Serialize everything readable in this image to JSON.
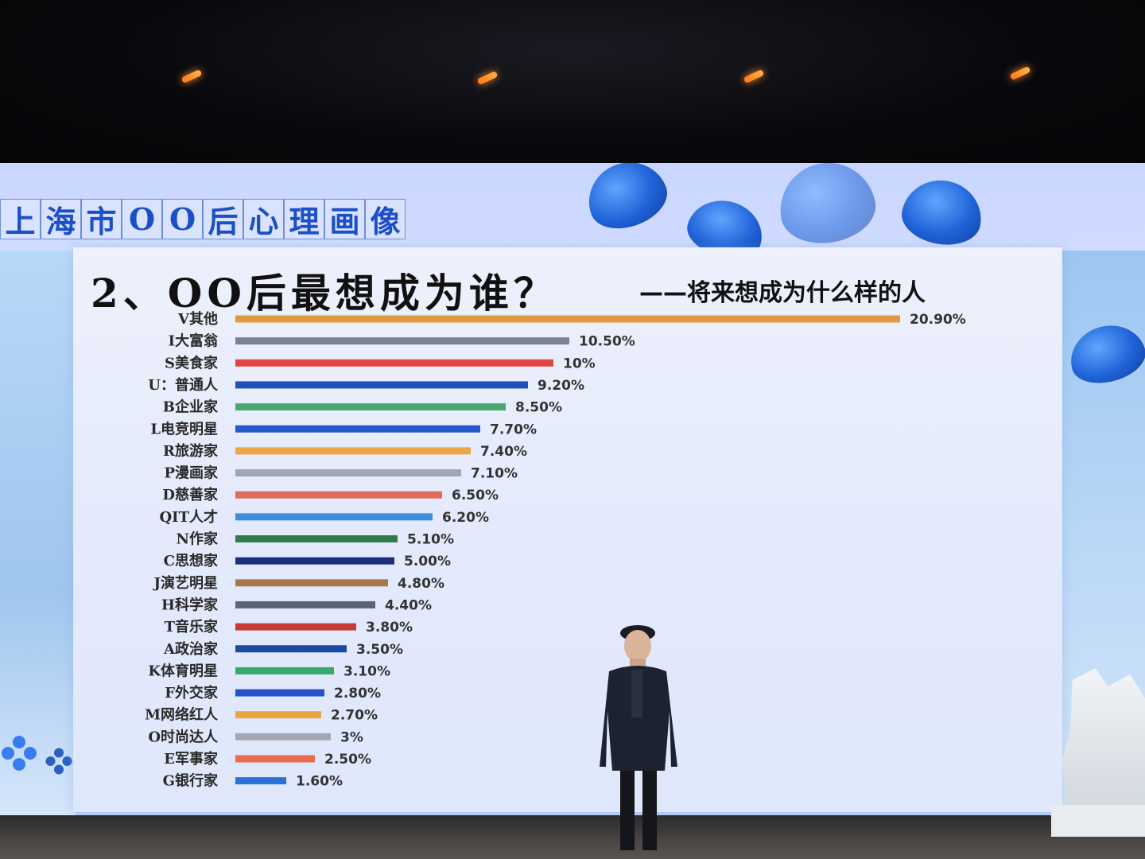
{
  "banner": {
    "chars": [
      "上",
      "海",
      "市",
      "O",
      "O",
      "后",
      "心",
      "理",
      "画",
      "像"
    ]
  },
  "slide": {
    "title": "2、OO后最想成为谁？",
    "subtitle": "——将来想成为什么样的人"
  },
  "chart_data": {
    "type": "bar",
    "orientation": "horizontal",
    "categories": [
      "V其他",
      "I大富翁",
      "S美食家",
      "U：普通人",
      "B企业家",
      "L电竞明星",
      "R旅游家",
      "P漫画家",
      "D慈善家",
      "QIT人才",
      "N作家",
      "C思想家",
      "J演艺明星",
      "H科学家",
      "T音乐家",
      "A政治家",
      "K体育明星",
      "F外交家",
      "M网络红人",
      "O时尚达人",
      "E军事家",
      "G银行家"
    ],
    "values": [
      20.9,
      10.5,
      10,
      9.2,
      8.5,
      7.7,
      7.4,
      7.1,
      6.5,
      6.2,
      5.1,
      5.0,
      4.8,
      4.4,
      3.8,
      3.5,
      3.1,
      2.8,
      2.7,
      3,
      2.5,
      1.6
    ],
    "value_labels": [
      "20.90%",
      "10.50%",
      "10%",
      "9.20%",
      "8.50%",
      "7.70%",
      "7.40%",
      "7.10%",
      "6.50%",
      "6.20%",
      "5.10%",
      "5.00%",
      "4.80%",
      "4.40%",
      "3.80%",
      "3.50%",
      "3.10%",
      "2.80%",
      "2.70%",
      "3%",
      "2.50%",
      "1.60%"
    ],
    "colors": [
      "#e09a3c",
      "#7b8391",
      "#e0463f",
      "#1f4fb8",
      "#4aa86e",
      "#2457c9",
      "#eda645",
      "#a1a6b3",
      "#e36b5a",
      "#3a8fe0",
      "#2f7a4a",
      "#1b2f7a",
      "#a8784a",
      "#5b6478",
      "#c83a34",
      "#1d4aa3",
      "#3aa86a",
      "#2353c6",
      "#eaa63e",
      "#a3a7b2",
      "#ec6a4e",
      "#2a72d8"
    ],
    "xlim": [
      0,
      21
    ],
    "unit": "%"
  },
  "colors": {
    "banner_text": "#1b4fc7",
    "screen_bg": "#d8e1ff"
  }
}
